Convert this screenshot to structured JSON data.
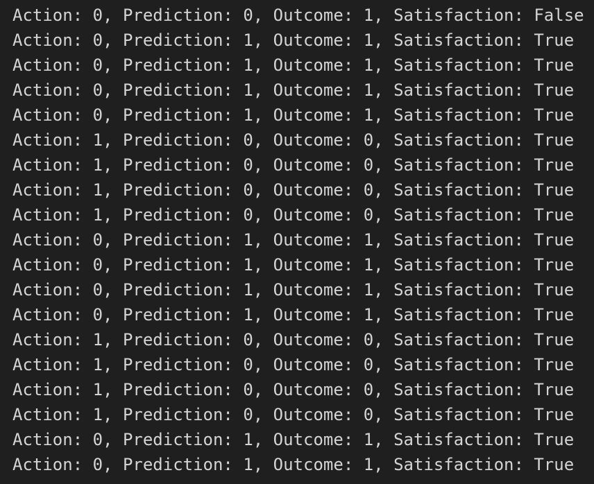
{
  "colors": {
    "background": "#1f1f1f",
    "text": "#d4d4d4"
  },
  "terminal": {
    "lines": [
      "Action: 0, Prediction: 0, Outcome: 1, Satisfaction: False",
      "Action: 0, Prediction: 1, Outcome: 1, Satisfaction: True",
      "Action: 0, Prediction: 1, Outcome: 1, Satisfaction: True",
      "Action: 0, Prediction: 1, Outcome: 1, Satisfaction: True",
      "Action: 0, Prediction: 1, Outcome: 1, Satisfaction: True",
      "Action: 1, Prediction: 0, Outcome: 0, Satisfaction: True",
      "Action: 1, Prediction: 0, Outcome: 0, Satisfaction: True",
      "Action: 1, Prediction: 0, Outcome: 0, Satisfaction: True",
      "Action: 1, Prediction: 0, Outcome: 0, Satisfaction: True",
      "Action: 0, Prediction: 1, Outcome: 1, Satisfaction: True",
      "Action: 0, Prediction: 1, Outcome: 1, Satisfaction: True",
      "Action: 0, Prediction: 1, Outcome: 1, Satisfaction: True",
      "Action: 0, Prediction: 1, Outcome: 1, Satisfaction: True",
      "Action: 1, Prediction: 0, Outcome: 0, Satisfaction: True",
      "Action: 1, Prediction: 0, Outcome: 0, Satisfaction: True",
      "Action: 1, Prediction: 0, Outcome: 0, Satisfaction: True",
      "Action: 1, Prediction: 0, Outcome: 0, Satisfaction: True",
      "Action: 0, Prediction: 1, Outcome: 1, Satisfaction: True",
      "Action: 0, Prediction: 1, Outcome: 1, Satisfaction: True"
    ]
  }
}
